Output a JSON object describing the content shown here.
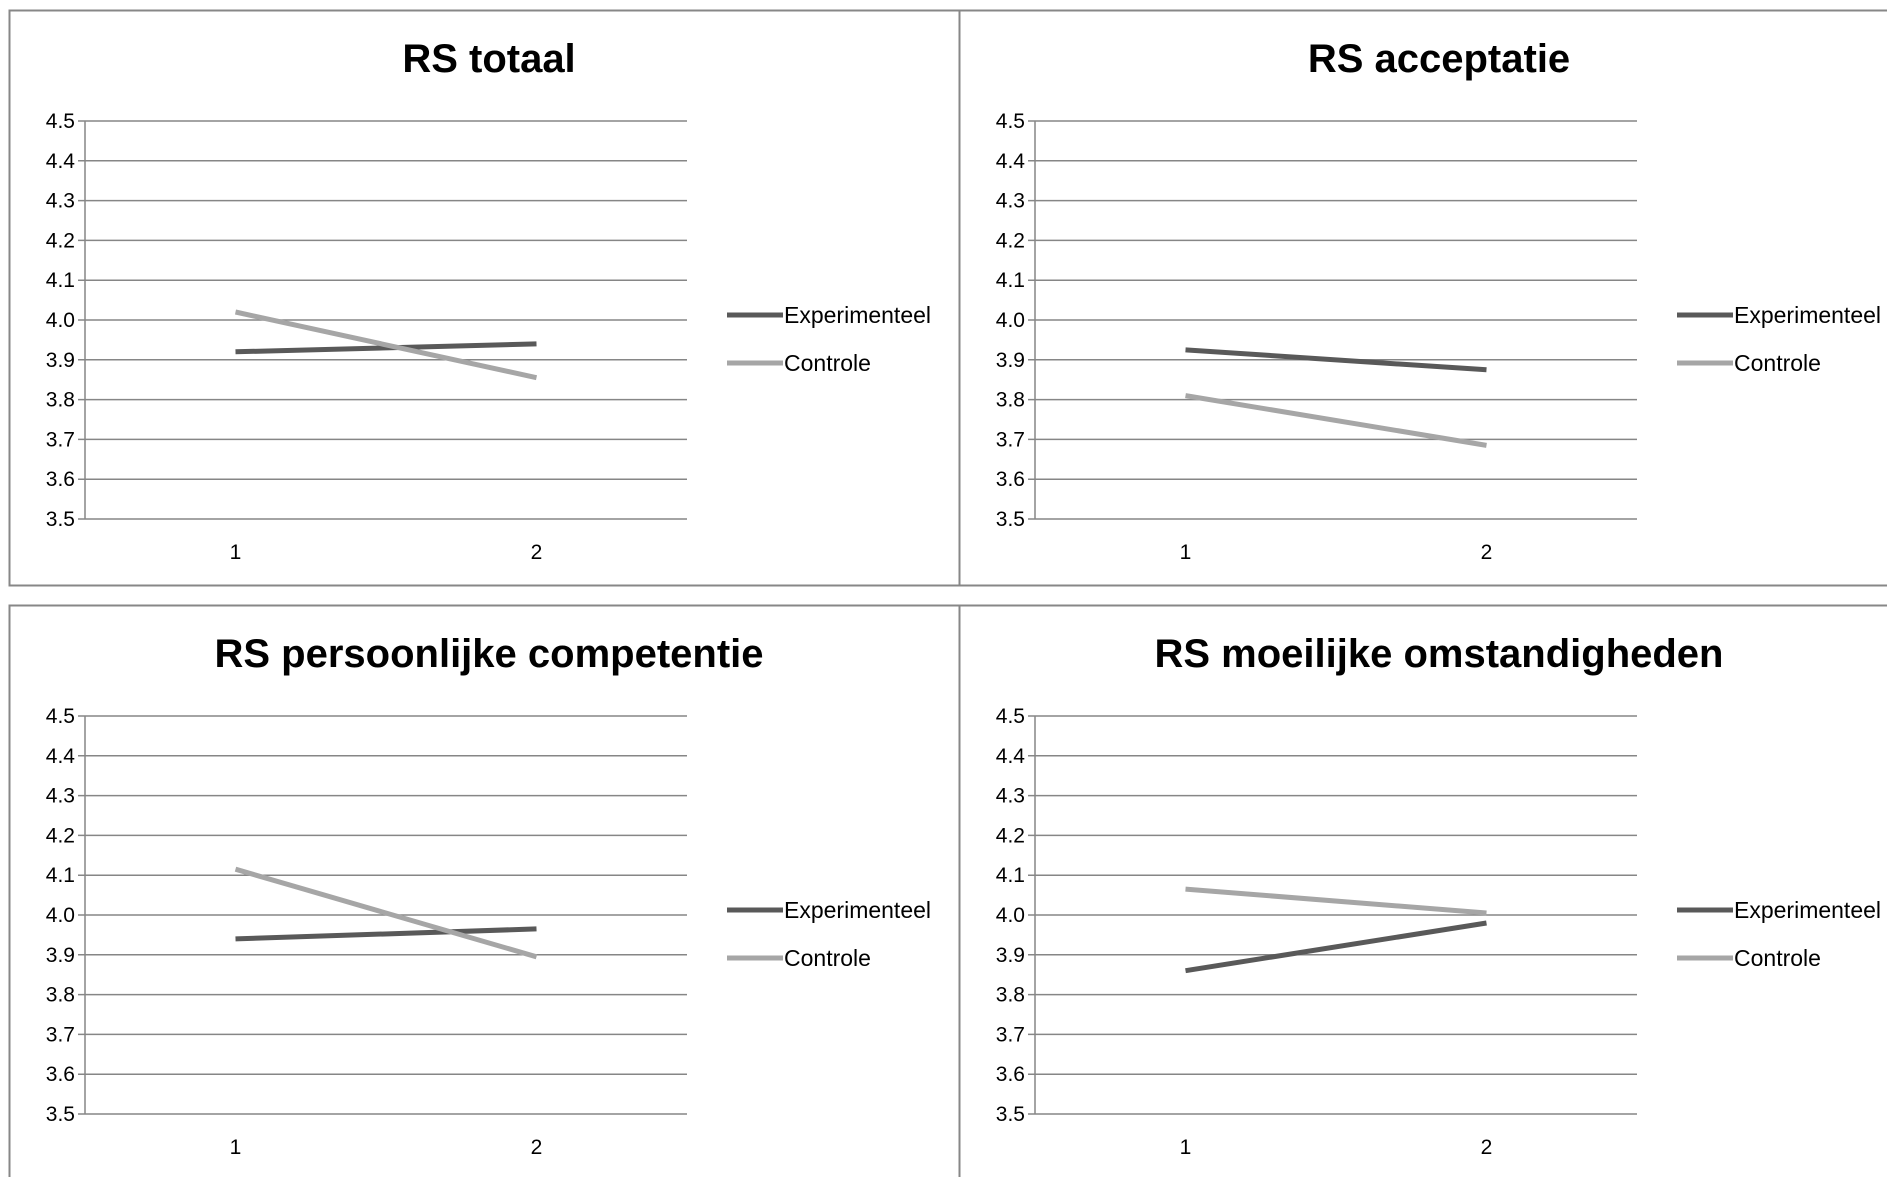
{
  "colors": {
    "experimental": "#595959",
    "control": "#a6a6a6",
    "gridline": "#868686",
    "frame": "#878787"
  },
  "chart_data": [
    {
      "type": "line",
      "title": "RS totaal",
      "categories": [
        "1",
        "2"
      ],
      "ylim": [
        3.5,
        4.5
      ],
      "yticks": [
        "4.5",
        "4.4",
        "4.3",
        "4.2",
        "4.1",
        "4.0",
        "3.9",
        "3.8",
        "3.7",
        "3.6",
        "3.5"
      ],
      "grid": true,
      "legend": "right",
      "series": [
        {
          "name": "Experimenteel",
          "values": [
            3.92,
            3.94
          ]
        },
        {
          "name": "Controle",
          "values": [
            4.02,
            3.855
          ]
        }
      ]
    },
    {
      "type": "line",
      "title": "RS acceptatie",
      "categories": [
        "1",
        "2"
      ],
      "ylim": [
        3.5,
        4.5
      ],
      "yticks": [
        "4.5",
        "4.4",
        "4.3",
        "4.2",
        "4.1",
        "4.0",
        "3.9",
        "3.8",
        "3.7",
        "3.6",
        "3.5"
      ],
      "grid": true,
      "legend": "right",
      "series": [
        {
          "name": "Experimenteel",
          "values": [
            3.925,
            3.875
          ]
        },
        {
          "name": "Controle",
          "values": [
            3.81,
            3.685
          ]
        }
      ]
    },
    {
      "type": "line",
      "title": "RS persoonlijke competentie",
      "categories": [
        "1",
        "2"
      ],
      "ylim": [
        3.5,
        4.5
      ],
      "yticks": [
        "4.5",
        "4.4",
        "4.3",
        "4.2",
        "4.1",
        "4.0",
        "3.9",
        "3.8",
        "3.7",
        "3.6",
        "3.5"
      ],
      "grid": true,
      "legend": "right",
      "series": [
        {
          "name": "Experimenteel",
          "values": [
            3.94,
            3.965
          ]
        },
        {
          "name": "Controle",
          "values": [
            4.115,
            3.895
          ]
        }
      ]
    },
    {
      "type": "line",
      "title": "RS moeilijke omstandigheden",
      "categories": [
        "1",
        "2"
      ],
      "ylim": [
        3.5,
        4.5
      ],
      "yticks": [
        "4.5",
        "4.4",
        "4.3",
        "4.2",
        "4.1",
        "4.0",
        "3.9",
        "3.8",
        "3.7",
        "3.6",
        "3.5"
      ],
      "grid": true,
      "legend": "right",
      "series": [
        {
          "name": "Experimenteel",
          "values": [
            3.86,
            3.98
          ]
        },
        {
          "name": "Controle",
          "values": [
            4.065,
            4.005
          ]
        }
      ]
    }
  ]
}
